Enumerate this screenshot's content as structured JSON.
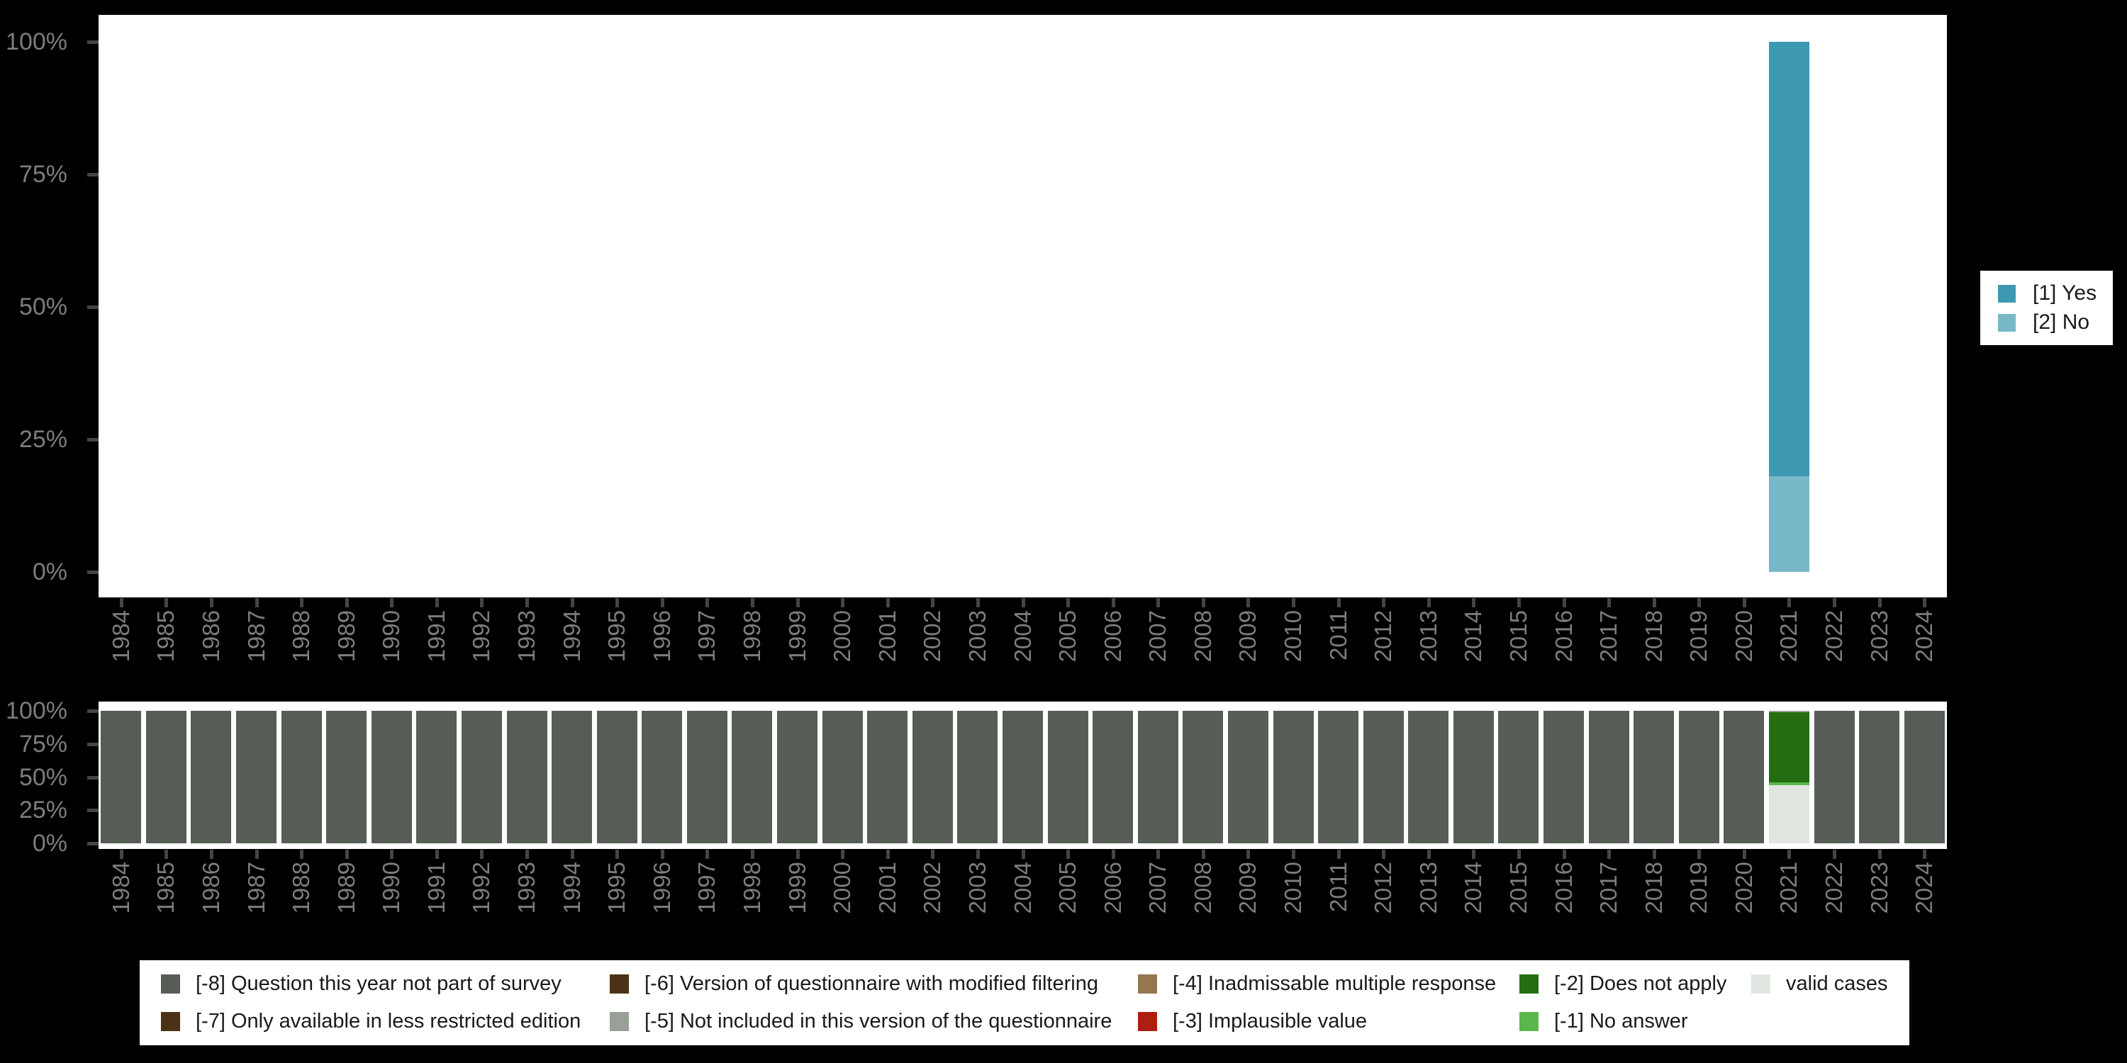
{
  "colors": {
    "background": "#000000",
    "panel": "#ffffff",
    "axis_text": "#7d7d7d",
    "axis_tick": "#454545",
    "legend_text": "#1a1a1a"
  },
  "right_legend": {
    "position": "right",
    "items": [
      {
        "label": "[1] Yes",
        "color": "#3d98b2"
      },
      {
        "label": "[2] No",
        "color": "#79b8c8"
      }
    ]
  },
  "missing_legend": {
    "position": "bottom",
    "columns": [
      [
        {
          "label": "[-8] Question this year not part of survey",
          "color": "#565d56"
        },
        {
          "label": "[-7] Only available in less restricted edition",
          "color": "#4b3217"
        }
      ],
      [
        {
          "label": "[-6] Version of questionnaire with modified filtering",
          "color": "#4b3217"
        },
        {
          "label": "[-5] Not included in this version of the questionnaire",
          "color": "#99a098"
        }
      ],
      [
        {
          "label": "[-4] Inadmissable multiple response",
          "color": "#97754d"
        },
        {
          "label": "[-3] Implausible value",
          "color": "#ae1e11"
        }
      ],
      [
        {
          "label": "[-2] Does not apply",
          "color": "#246d12"
        },
        {
          "label": "[-1] No answer",
          "color": "#5bb74b"
        }
      ],
      [
        {
          "label": "valid cases",
          "color": "#e0e5e0"
        }
      ]
    ]
  },
  "chart_data": [
    {
      "type": "bar",
      "stacked": true,
      "title": "",
      "xlabel": "",
      "ylabel": "",
      "y_unit": "percent",
      "ylim": [
        0,
        100
      ],
      "yticks": [
        "0%",
        "25%",
        "50%",
        "75%",
        "100%"
      ],
      "grid": false,
      "legend_position": "right",
      "categories": [
        1984,
        1985,
        1986,
        1987,
        1988,
        1989,
        1990,
        1991,
        1992,
        1993,
        1994,
        1995,
        1996,
        1997,
        1998,
        1999,
        2000,
        2001,
        2002,
        2003,
        2004,
        2005,
        2006,
        2007,
        2008,
        2009,
        2010,
        2011,
        2012,
        2013,
        2014,
        2015,
        2016,
        2017,
        2018,
        2019,
        2020,
        2021,
        2022,
        2023,
        2024
      ],
      "series": [
        {
          "name": "[2] No",
          "color": "#79b8c8",
          "default": 0,
          "values_by_year": {
            "2021": 18
          }
        },
        {
          "name": "[1] Yes",
          "color": "#3d98b2",
          "default": 0,
          "values_by_year": {
            "2021": 82
          }
        }
      ]
    },
    {
      "type": "bar",
      "stacked": true,
      "title": "",
      "xlabel": "",
      "ylabel": "",
      "y_unit": "percent",
      "ylim": [
        0,
        100
      ],
      "yticks": [
        "0%",
        "25%",
        "50%",
        "75%",
        "100%"
      ],
      "grid": false,
      "legend_position": "bottom",
      "categories": [
        1984,
        1985,
        1986,
        1987,
        1988,
        1989,
        1990,
        1991,
        1992,
        1993,
        1994,
        1995,
        1996,
        1997,
        1998,
        1999,
        2000,
        2001,
        2002,
        2003,
        2004,
        2005,
        2006,
        2007,
        2008,
        2009,
        2010,
        2011,
        2012,
        2013,
        2014,
        2015,
        2016,
        2017,
        2018,
        2019,
        2020,
        2021,
        2022,
        2023,
        2024
      ],
      "series": [
        {
          "name": "valid cases",
          "color": "#e0e5e0",
          "default": 0,
          "values_by_year": {
            "2021": 44
          }
        },
        {
          "name": "[-1] No answer",
          "color": "#5bb74b",
          "default": 0,
          "values_by_year": {
            "2021": 2
          }
        },
        {
          "name": "[-2] Does not apply",
          "color": "#246d12",
          "default": 0,
          "values_by_year": {
            "2021": 53
          }
        },
        {
          "name": "[-3] Implausible value",
          "color": "#ae1e11",
          "default": 0,
          "values_by_year": {}
        },
        {
          "name": "[-4] Inadmissable multiple response",
          "color": "#97754d",
          "default": 0,
          "values_by_year": {}
        },
        {
          "name": "[-5] Not included in this version of the questionnaire",
          "color": "#99a098",
          "default": 0,
          "values_by_year": {
            "2021": 1
          }
        },
        {
          "name": "[-6] Version of questionnaire with modified filtering",
          "color": "#4b3217",
          "default": 0,
          "values_by_year": {}
        },
        {
          "name": "[-7] Only available in less restricted edition",
          "color": "#4b3217",
          "default": 0,
          "values_by_year": {}
        },
        {
          "name": "[-8] Question this year not part of survey",
          "color": "#565d56",
          "default": 100,
          "values_by_year": {
            "2021": 0
          }
        }
      ]
    }
  ]
}
